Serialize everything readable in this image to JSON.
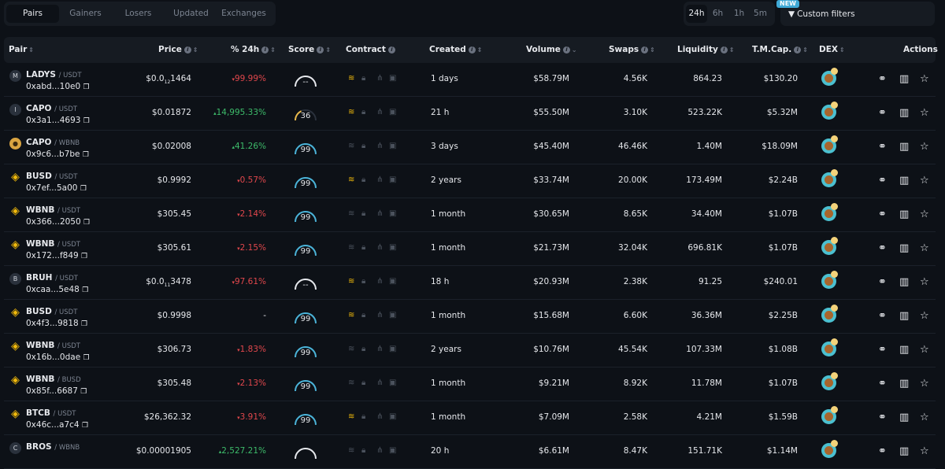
{
  "tabs": [
    "Pairs",
    "Gainers",
    "Losers",
    "Updated",
    "Exchanges"
  ],
  "timeframes": [
    "24h",
    "6h",
    "1h",
    "5m"
  ],
  "custom_filters": {
    "label": "Custom filters",
    "badge": "NEW"
  },
  "headers": {
    "pair": "Pair",
    "price": "Price",
    "change": "% 24h",
    "score": "Score",
    "contract": "Contract",
    "created": "Created",
    "volume": "Volume",
    "swaps": "Swaps",
    "liquidity": "Liquidity",
    "tmcap": "T.M.Cap.",
    "dex": "DEX",
    "actions": "Actions"
  },
  "colors": {
    "positive": "#3dbb6a",
    "negative": "#e0474c",
    "gauge": "#4ab3d8",
    "gauge_mid": "#e8b84a",
    "accent_gold": "#f0b90b"
  },
  "rows": [
    {
      "avatar": "M",
      "avatar_type": "letter",
      "base": "LADYS",
      "quote": "USDT",
      "address": "0xabd...10e0",
      "price": "$0.0",
      "price_sub": "12",
      "price_tail": "1464",
      "change": "99.99%",
      "dir": "neg",
      "score": "--",
      "created": "1 days",
      "volume": "$58.79M",
      "swaps": "4.56K",
      "liquidity": "864.23",
      "tmcap": "$130.20",
      "gold": true
    },
    {
      "avatar": "I",
      "avatar_type": "letter",
      "base": "CAPO",
      "quote": "USDT",
      "address": "0x3a1...4693",
      "price": "$0.01872",
      "change": "14,995.33%",
      "dir": "pos",
      "score": "36",
      "created": "21 h",
      "volume": "$55.50M",
      "swaps": "3.10K",
      "liquidity": "523.22K",
      "tmcap": "$5.32M",
      "gold": true
    },
    {
      "avatar": "",
      "avatar_type": "img",
      "base": "CAPO",
      "quote": "WBNB",
      "address": "0x9c6...b7be",
      "price": "$0.02008",
      "change": "41.26%",
      "dir": "pos",
      "score": "99",
      "created": "3 days",
      "volume": "$45.40M",
      "swaps": "46.46K",
      "liquidity": "1.40M",
      "tmcap": "$18.09M",
      "gold": false
    },
    {
      "avatar": "",
      "avatar_type": "bn",
      "base": "BUSD",
      "quote": "USDT",
      "address": "0x7ef...5a00",
      "price": "$0.9992",
      "change": "0.57%",
      "dir": "neg",
      "score": "99",
      "created": "2 years",
      "volume": "$33.74M",
      "swaps": "20.00K",
      "liquidity": "173.49M",
      "tmcap": "$2.24B",
      "gold": true
    },
    {
      "avatar": "",
      "avatar_type": "bn",
      "base": "WBNB",
      "quote": "USDT",
      "address": "0x366...2050",
      "price": "$305.45",
      "change": "2.14%",
      "dir": "neg",
      "score": "99",
      "created": "1 month",
      "volume": "$30.65M",
      "swaps": "8.65K",
      "liquidity": "34.40M",
      "tmcap": "$1.07B",
      "gold": false
    },
    {
      "avatar": "",
      "avatar_type": "bn",
      "base": "WBNB",
      "quote": "USDT",
      "address": "0x172...f849",
      "price": "$305.61",
      "change": "2.15%",
      "dir": "neg",
      "score": "99",
      "created": "1 month",
      "volume": "$21.73M",
      "swaps": "32.04K",
      "liquidity": "696.81K",
      "tmcap": "$1.07B",
      "gold": false
    },
    {
      "avatar": "B",
      "avatar_type": "letter",
      "base": "BRUH",
      "quote": "USDT",
      "address": "0xcaa...5e48",
      "price": "$0.0",
      "price_sub": "11",
      "price_tail": "3478",
      "change": "97.61%",
      "dir": "neg",
      "score": "--",
      "created": "18 h",
      "volume": "$20.93M",
      "swaps": "2.38K",
      "liquidity": "91.25",
      "tmcap": "$240.01",
      "gold": true
    },
    {
      "avatar": "",
      "avatar_type": "bn",
      "base": "BUSD",
      "quote": "USDT",
      "address": "0x4f3...9818",
      "price": "$0.9998",
      "change": "-",
      "dir": "none",
      "score": "99",
      "created": "1 month",
      "volume": "$15.68M",
      "swaps": "6.60K",
      "liquidity": "36.36M",
      "tmcap": "$2.25B",
      "gold": true
    },
    {
      "avatar": "",
      "avatar_type": "bn",
      "base": "WBNB",
      "quote": "USDT",
      "address": "0x16b...0dae",
      "price": "$306.73",
      "change": "1.83%",
      "dir": "neg",
      "score": "99",
      "created": "2 years",
      "volume": "$10.76M",
      "swaps": "45.54K",
      "liquidity": "107.33M",
      "tmcap": "$1.08B",
      "gold": false
    },
    {
      "avatar": "",
      "avatar_type": "bn",
      "base": "WBNB",
      "quote": "BUSD",
      "address": "0x85f...6687",
      "price": "$305.48",
      "change": "2.13%",
      "dir": "neg",
      "score": "99",
      "created": "1 month",
      "volume": "$9.21M",
      "swaps": "8.92K",
      "liquidity": "11.78M",
      "tmcap": "$1.07B",
      "gold": false
    },
    {
      "avatar": "",
      "avatar_type": "bn",
      "base": "BTCB",
      "quote": "USDT",
      "address": "0x46c...a7c4",
      "price": "$26,362.32",
      "change": "3.91%",
      "dir": "neg",
      "score": "99",
      "created": "1 month",
      "volume": "$7.09M",
      "swaps": "2.58K",
      "liquidity": "4.21M",
      "tmcap": "$1.59B",
      "gold": true
    },
    {
      "avatar": "C",
      "avatar_type": "letter",
      "base": "BROS",
      "quote": "WBNB",
      "address": "",
      "price": "$0.00001905",
      "change": "2,527.21%",
      "dir": "pos",
      "score": "",
      "created": "20 h",
      "volume": "$6.61M",
      "swaps": "8.47K",
      "liquidity": "151.71K",
      "tmcap": "$1.14M",
      "gold": false
    }
  ]
}
